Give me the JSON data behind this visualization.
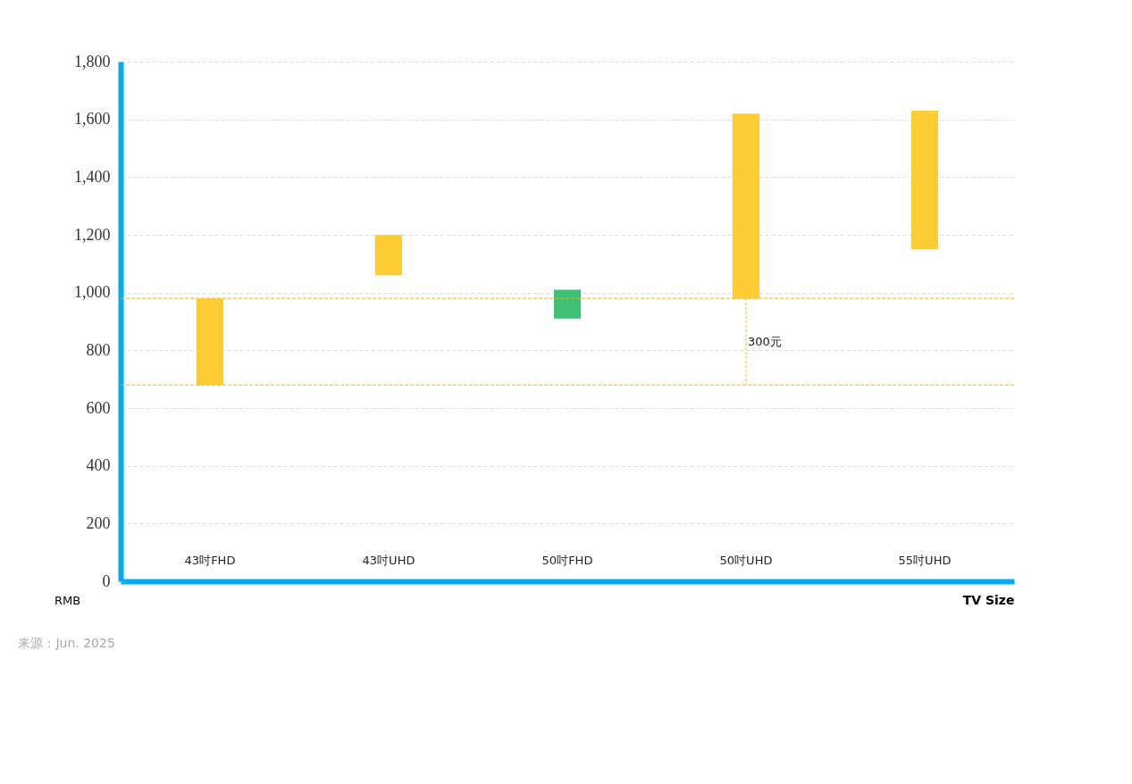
{
  "chart_data": {
    "type": "bar",
    "xlabel": "TV Size",
    "ylabel": "RMB",
    "categories": [
      "43吋FHD",
      "43吋UHD",
      "50吋FHD",
      "50吋UHD",
      "55吋UHD"
    ],
    "base": [
      680,
      1060,
      910,
      980,
      1150
    ],
    "values": [
      300,
      140,
      100,
      640,
      480
    ],
    "colors": [
      "#ffcc33",
      "#ffcc33",
      "#3dbf75",
      "#ffcc33",
      "#ffcc33"
    ],
    "ylim": [
      0,
      1800
    ],
    "yticks": [
      0,
      {
        "value": 200,
        "label": "200"
      },
      {
        "value": 400,
        "label": "400"
      },
      {
        "value": 600,
        "label": "600"
      },
      {
        "value": 800,
        "label": "800"
      },
      {
        "value": 1000,
        "label": "1,000"
      },
      {
        "value": 1200,
        "label": "1,200"
      },
      {
        "value": 1400,
        "label": "1,400"
      },
      {
        "value": 1600,
        "label": "1,600"
      },
      {
        "value": 1800,
        "label": "1,800"
      }
    ],
    "grid": "y",
    "ref_lines": [
      {
        "axis": "y",
        "value": 680,
        "color": "#f5b800",
        "line_style": "dashed"
      },
      {
        "axis": "y",
        "value": 980,
        "color": "#f5b800",
        "line_style": "dashed"
      }
    ],
    "annotations": [
      "300元",
      "来源：Jun. 2025"
    ]
  }
}
